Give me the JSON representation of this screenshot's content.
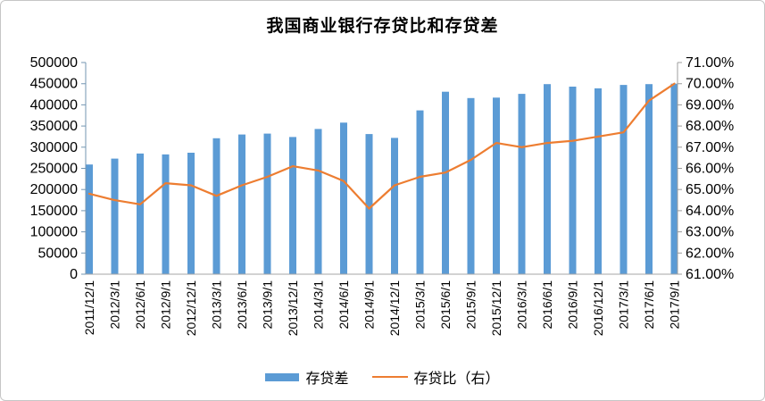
{
  "chart_data": {
    "type": "bar",
    "title": "我国商业银行存贷比和存贷差",
    "categories": [
      "2011/12/1",
      "2012/3/1",
      "2012/6/1",
      "2012/9/1",
      "2012/12/1",
      "2013/3/1",
      "2013/6/1",
      "2013/9/1",
      "2013/12/1",
      "2014/3/1",
      "2014/6/1",
      "2014/9/1",
      "2014/12/1",
      "2015/3/1",
      "2015/6/1",
      "2015/9/1",
      "2015/12/1",
      "2016/3/1",
      "2016/6/1",
      "2016/9/1",
      "2016/12/1",
      "2017/3/1",
      "2017/6/1",
      "2017/9/1"
    ],
    "series": [
      {
        "name": "存贷差",
        "type": "bar",
        "axis": "left",
        "color": "#5B9BD5",
        "values": [
          259000,
          273000,
          285000,
          283000,
          287000,
          321000,
          330000,
          332000,
          324000,
          343000,
          358000,
          331000,
          322000,
          387000,
          431000,
          416000,
          417000,
          426000,
          449000,
          443000,
          439000,
          447000,
          449000,
          450000
        ]
      },
      {
        "name": "存贷比（右）",
        "type": "line",
        "axis": "right",
        "color": "#ED7D31",
        "values": [
          64.8,
          64.5,
          64.3,
          65.3,
          65.2,
          64.7,
          65.2,
          65.6,
          66.1,
          65.9,
          65.4,
          64.1,
          65.2,
          65.6,
          65.8,
          66.4,
          67.2,
          67.0,
          67.2,
          67.3,
          67.5,
          67.7,
          69.2,
          70.0
        ]
      }
    ],
    "left_axis": {
      "min": 0,
      "max": 500000,
      "step": 50000,
      "color": "#7396B2",
      "tick_labels": [
        "500000",
        "450000",
        "400000",
        "350000",
        "300000",
        "250000",
        "200000",
        "150000",
        "100000",
        "50000",
        "0"
      ]
    },
    "right_axis": {
      "min": 61,
      "max": 71,
      "step": 1,
      "color": "#9C9C9C",
      "tick_labels": [
        "71.00%",
        "70.00%",
        "69.00%",
        "68.00%",
        "67.00%",
        "66.00%",
        "65.00%",
        "64.00%",
        "63.00%",
        "62.00%",
        "61.00%"
      ]
    },
    "x_axis": {
      "color": "#A6A6A6"
    },
    "grid": false,
    "legend_position": "bottom"
  }
}
